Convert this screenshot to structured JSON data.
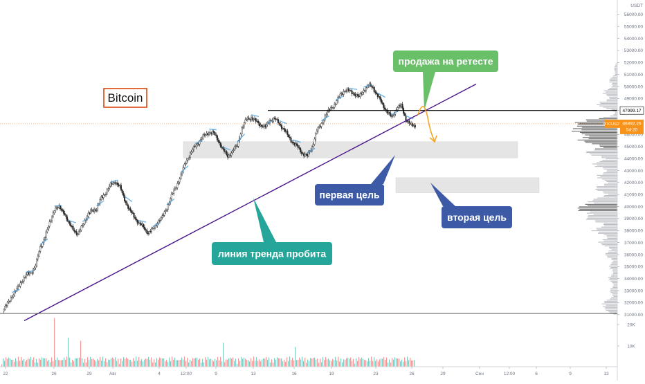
{
  "chart_data": {
    "type": "candlestick",
    "symbol": "BTCUSDT",
    "title": "Bitcoin",
    "y_axis": {
      "unit_label": "USDT",
      "ticks": [
        "56000.00",
        "55000.00",
        "54000.00",
        "53000.00",
        "52000.00",
        "51000.00",
        "50000.00",
        "49000.00",
        "48000.00",
        "47000.00",
        "46000.00",
        "45000.00",
        "44000.00",
        "43000.00",
        "42000.00",
        "41000.00",
        "40000.00",
        "39000.00",
        "38000.00",
        "37000.00",
        "36000.00",
        "35000.00",
        "34000.00",
        "33000.00",
        "32000.00",
        "31000.00"
      ],
      "range": [
        30700,
        57200
      ],
      "scale": "linear"
    },
    "x_axis": {
      "ticks": [
        "22",
        "26",
        "29",
        "Авг",
        "4",
        "12:00",
        "9",
        "13",
        "16",
        "19",
        "23",
        "26",
        "29",
        "Сен",
        "12:00",
        "6",
        "9",
        "13"
      ]
    },
    "volume_axis": {
      "ticks": [
        "20K",
        "10K"
      ],
      "range": [
        0,
        26000
      ]
    },
    "price_series": [
      31300,
      31900,
      32600,
      33100,
      33800,
      34300,
      34500,
      35100,
      36600,
      37500,
      38600,
      39800,
      39900,
      39600,
      38600,
      38200,
      37600,
      38500,
      39200,
      39700,
      39800,
      40700,
      41200,
      41800,
      42100,
      41600,
      40600,
      39700,
      39200,
      38600,
      38300,
      37800,
      38100,
      38700,
      39100,
      39900,
      40900,
      41700,
      42600,
      43700,
      44400,
      45000,
      45500,
      45900,
      46200,
      46100,
      45500,
      44700,
      44200,
      44600,
      45100,
      46500,
      47300,
      47400,
      47100,
      46800,
      46600,
      47200,
      47300,
      46900,
      46400,
      45800,
      45300,
      44900,
      44400,
      44200,
      45000,
      46300,
      46900,
      47700,
      48200,
      48600,
      49300,
      49700,
      49600,
      49400,
      49100,
      49700,
      50100,
      49900,
      49200,
      48500,
      47900,
      47400,
      48200,
      48400,
      47300,
      46800,
      46700
    ],
    "last_price": {
      "label": "BTCUSDT",
      "value": "46892.26",
      "countdown": "54:20",
      "price": 46892.26
    },
    "horizontal_level": {
      "value": "47999.17",
      "price": 47999.17
    },
    "support_zones": [
      {
        "name": "первая цель",
        "low": 44050,
        "high": 45400
      },
      {
        "name": "вторая цель",
        "low": 41150,
        "high": 42400
      }
    ],
    "trendline": {
      "from_price": 30500,
      "to_price": 50200
    },
    "annotations": [
      {
        "text": "продажа на ретесте",
        "color": "#6abf69"
      },
      {
        "text": "первая цель",
        "color": "#3d5aa6"
      },
      {
        "text": "вторая цель",
        "color": "#3d5aa6"
      },
      {
        "text": "линия тренда пробита",
        "color": "#26a69a"
      }
    ],
    "grid": false
  }
}
